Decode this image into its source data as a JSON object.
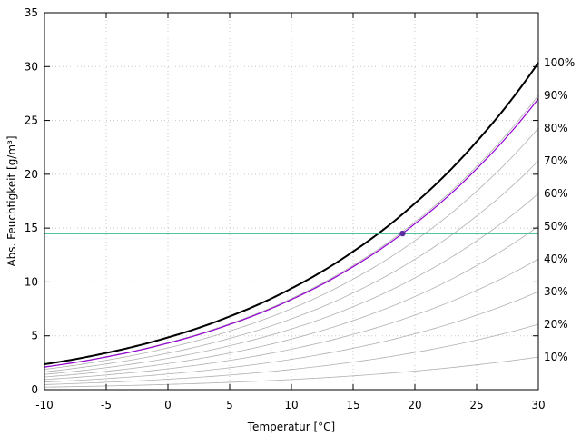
{
  "chart_data": {
    "type": "line",
    "xlabel": "Temperatur [°C]",
    "ylabel": "Abs. Feuchtigkeit [g/m³]",
    "xlim": [
      -10,
      30
    ],
    "ylim": [
      0,
      35
    ],
    "xticks": [
      "-10",
      "-5",
      "0",
      "5",
      "10",
      "15",
      "20",
      "25",
      "30"
    ],
    "yticks": [
      "0",
      "5",
      "10",
      "15",
      "20",
      "25",
      "30",
      "35"
    ],
    "grid": true,
    "x": [
      -10,
      -5,
      0,
      5,
      10,
      15,
      20,
      25,
      30
    ],
    "saturation_values": [
      2.36,
      3.41,
      4.85,
      6.8,
      9.4,
      12.83,
      17.3,
      23.04,
      30.36
    ],
    "rh_levels": [
      {
        "label": "100%",
        "factor": 1.0
      },
      {
        "label": "90%",
        "factor": 0.9
      },
      {
        "label": "80%",
        "factor": 0.8
      },
      {
        "label": "70%",
        "factor": 0.7
      },
      {
        "label": "60%",
        "factor": 0.6
      },
      {
        "label": "50%",
        "factor": 0.5
      },
      {
        "label": "40%",
        "factor": 0.4
      },
      {
        "label": "30%",
        "factor": 0.3
      },
      {
        "label": "20%",
        "factor": 0.2
      },
      {
        "label": "10%",
        "factor": 0.1
      }
    ],
    "highlight_curve_factor": 0.89,
    "horizontal_line_y": 14.5,
    "point": {
      "x": 19,
      "y": 14.5
    },
    "colors": {
      "saturation": "#000000",
      "rh_curves": "#b0b0b0",
      "highlight": "#9400d3",
      "horizontal": "#3cb98f",
      "point": "#5a2ca0",
      "grid": "#c8c8c8"
    }
  }
}
